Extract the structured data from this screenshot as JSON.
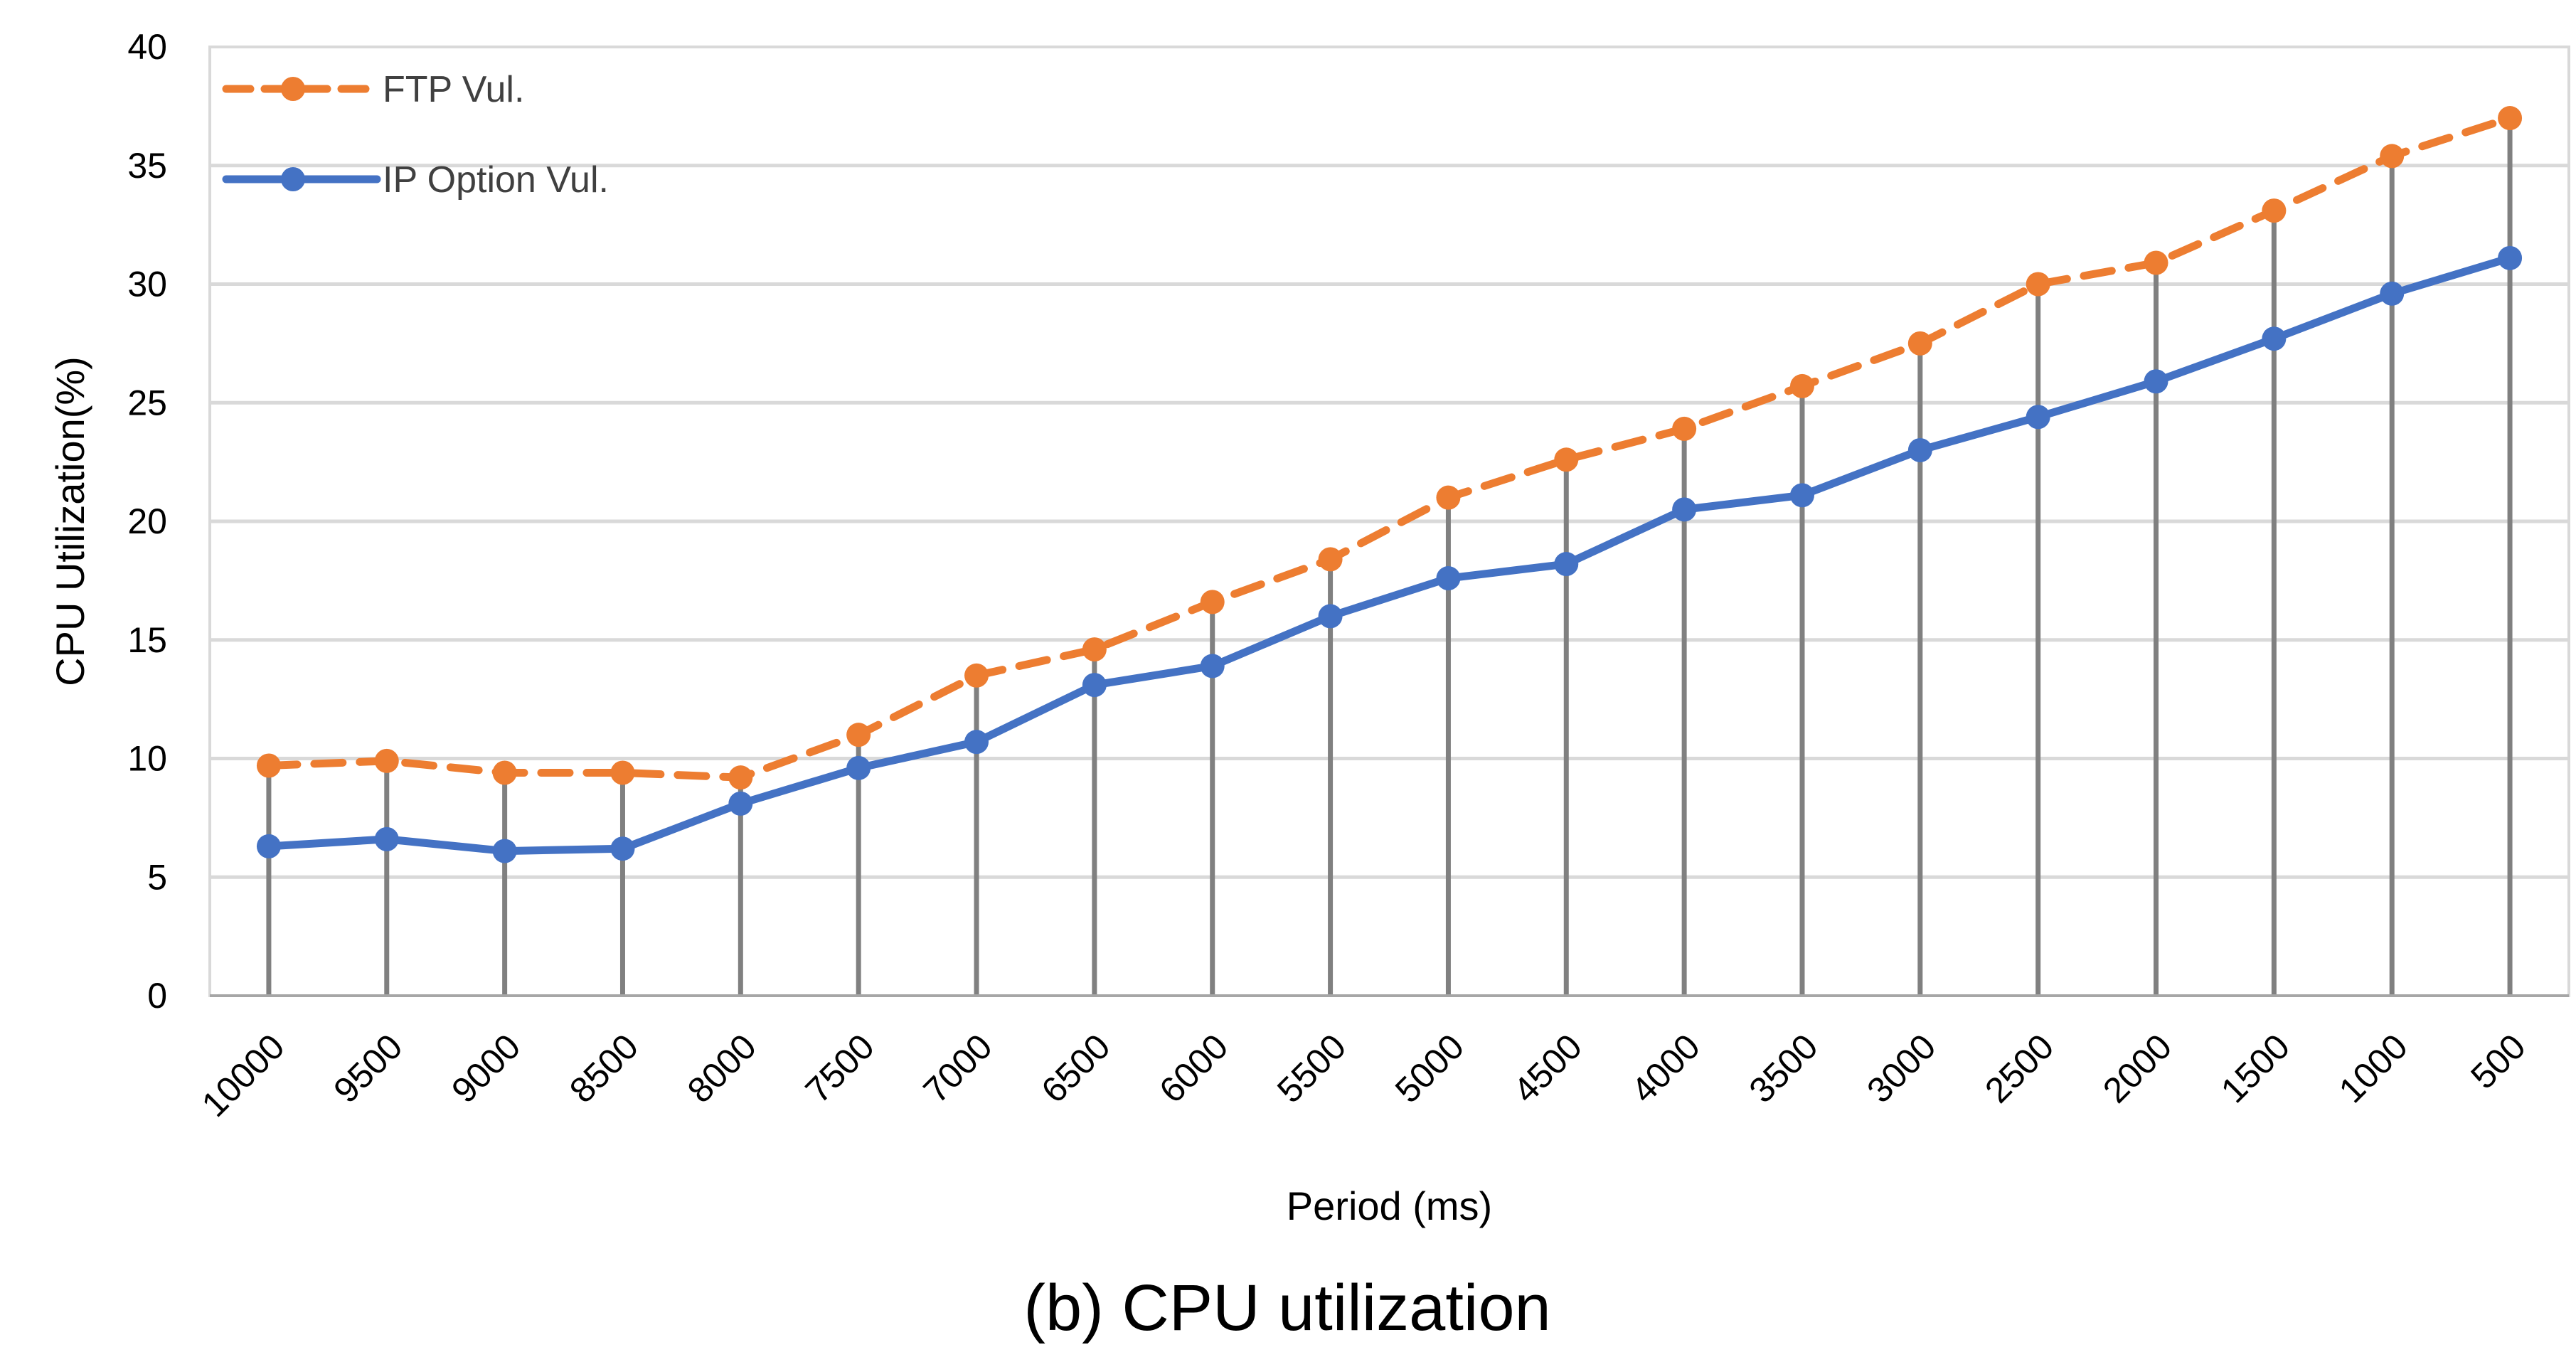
{
  "chart_data": {
    "type": "line",
    "title": "(b) CPU utilization",
    "xlabel": "Period (ms)",
    "ylabel": "CPU Utilization(%)",
    "ylim": [
      0,
      40
    ],
    "yticks": [
      0,
      5,
      10,
      15,
      20,
      25,
      30,
      35,
      40
    ],
    "grid": true,
    "legend_position": "top-left",
    "categories": [
      "10000",
      "9500",
      "9000",
      "8500",
      "8000",
      "7500",
      "7000",
      "6500",
      "6000",
      "5500",
      "5000",
      "4500",
      "4000",
      "3500",
      "3000",
      "2500",
      "2000",
      "1500",
      "1000",
      "500"
    ],
    "series": [
      {
        "name": "FTP Vul.",
        "color": "#ED7D31",
        "style": "dashed",
        "values": [
          9.7,
          9.9,
          9.4,
          9.4,
          9.2,
          11.0,
          13.5,
          14.6,
          16.6,
          18.4,
          21.0,
          22.6,
          23.9,
          25.7,
          27.5,
          30.0,
          30.9,
          33.1,
          35.4,
          37.0
        ]
      },
      {
        "name": "IP Option Vul.",
        "color": "#4472C4",
        "style": "solid",
        "values": [
          6.3,
          6.6,
          6.1,
          6.2,
          8.1,
          9.6,
          10.7,
          13.1,
          13.9,
          16.0,
          17.6,
          18.2,
          20.5,
          21.1,
          23.0,
          24.4,
          25.9,
          27.7,
          29.6,
          31.1
        ]
      }
    ],
    "drop_line_color": "#808080",
    "grid_color": "#D9D9D9"
  }
}
